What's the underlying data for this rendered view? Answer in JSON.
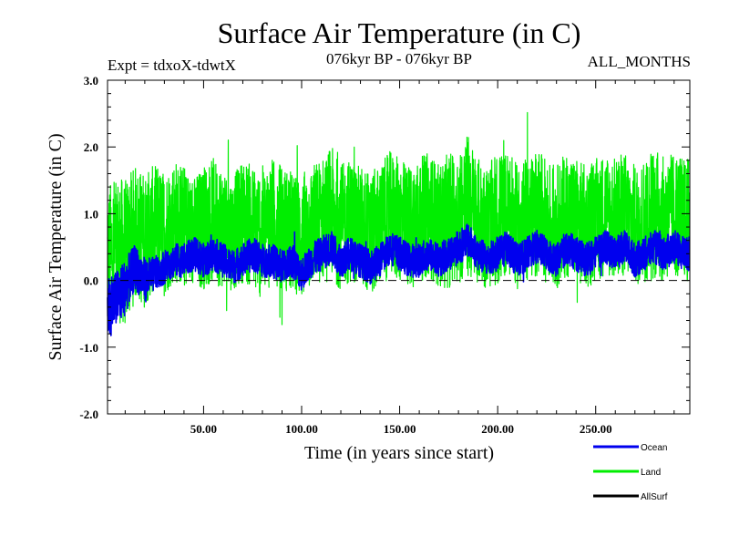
{
  "header": {
    "title": "Surface Air Temperature (in C)",
    "expt": "Expt = tdxoX-tdwtX",
    "period": "076kyr BP - 076kyr BP",
    "months": "ALL_MONTHS"
  },
  "chart_data": {
    "type": "line",
    "title": "Surface Air Temperature (in C)",
    "xlabel": "Time (in years since start)",
    "ylabel": "Surface Air Temperature (in C)",
    "xlim": [
      1,
      298
    ],
    "ylim": [
      -2.0,
      3.0
    ],
    "x_ticks": [
      50,
      100,
      150,
      200,
      250
    ],
    "x_tick_labels": [
      "50.00",
      "100.00",
      "150.00",
      "200.00",
      "250.00"
    ],
    "y_ticks": [
      -2.0,
      -1.0,
      0.0,
      1.0,
      2.0,
      3.0
    ],
    "y_tick_labels": [
      "-2.0",
      "-1.0",
      "0.0",
      "1.0",
      "2.0",
      "3.0"
    ],
    "zero_line": true,
    "legend_position": "bottom-right",
    "series": [
      {
        "name": "Land",
        "color": "#00ee00",
        "draw_order": 1,
        "x": [
          1,
          5,
          10,
          15,
          20,
          25,
          30,
          35,
          40,
          45,
          50,
          55,
          60,
          65,
          70,
          75,
          80,
          85,
          90,
          95,
          100,
          105,
          110,
          115,
          120,
          125,
          130,
          135,
          140,
          145,
          150,
          155,
          160,
          165,
          170,
          175,
          180,
          185,
          190,
          195,
          200,
          205,
          210,
          215,
          220,
          225,
          230,
          235,
          240,
          245,
          250,
          255,
          260,
          265,
          270,
          275,
          280,
          285,
          290,
          295,
          298
        ],
        "values": [
          0.3,
          0.5,
          0.4,
          0.7,
          0.6,
          0.8,
          0.7,
          0.9,
          0.8,
          0.7,
          0.8,
          0.9,
          0.8,
          0.7,
          0.9,
          0.8,
          0.7,
          0.9,
          0.8,
          0.7,
          0.6,
          0.8,
          0.9,
          1.0,
          0.8,
          0.9,
          0.8,
          0.7,
          0.8,
          1.0,
          0.9,
          0.8,
          0.9,
          1.0,
          0.8,
          0.9,
          1.0,
          1.1,
          0.9,
          0.8,
          0.9,
          1.0,
          0.8,
          0.9,
          1.0,
          0.9,
          0.8,
          1.0,
          0.9,
          0.8,
          0.9,
          1.0,
          0.9,
          1.0,
          0.8,
          0.9,
          1.0,
          0.9,
          1.0,
          0.9,
          0.9
        ],
        "band": [
          1.3,
          1.3,
          1.3,
          1.2,
          1.2,
          1.1,
          1.1,
          1.1,
          1.1,
          1.0,
          1.1,
          1.1,
          1.1,
          1.0,
          1.1,
          1.1,
          1.2,
          1.1,
          1.1,
          1.1,
          1.1,
          1.1,
          1.1,
          1.2,
          1.1,
          1.1,
          1.1,
          1.1,
          1.1,
          1.1,
          1.1,
          1.1,
          1.1,
          1.1,
          1.1,
          1.2,
          1.2,
          1.3,
          1.1,
          1.1,
          1.2,
          1.1,
          1.1,
          1.1,
          1.1,
          1.1,
          1.1,
          1.1,
          1.1,
          1.1,
          1.1,
          1.1,
          1.1,
          1.1,
          1.1,
          1.1,
          1.2,
          1.1,
          1.1,
          1.1,
          1.1
        ]
      },
      {
        "name": "Ocean",
        "color": "#0000ee",
        "draw_order": 2,
        "x": [
          1,
          5,
          10,
          15,
          20,
          25,
          30,
          35,
          40,
          45,
          50,
          55,
          60,
          65,
          70,
          75,
          80,
          85,
          90,
          95,
          100,
          105,
          110,
          115,
          120,
          125,
          130,
          135,
          140,
          145,
          150,
          155,
          160,
          165,
          170,
          175,
          180,
          185,
          190,
          195,
          200,
          205,
          210,
          215,
          220,
          225,
          230,
          235,
          240,
          245,
          250,
          255,
          260,
          265,
          270,
          275,
          280,
          285,
          290,
          295,
          298
        ],
        "values": [
          -0.4,
          -0.3,
          -0.1,
          0.2,
          0.0,
          0.1,
          0.2,
          0.3,
          0.3,
          0.4,
          0.3,
          0.4,
          0.3,
          0.2,
          0.3,
          0.4,
          0.3,
          0.3,
          0.2,
          0.3,
          0.1,
          0.3,
          0.4,
          0.5,
          0.3,
          0.4,
          0.3,
          0.2,
          0.3,
          0.5,
          0.4,
          0.3,
          0.3,
          0.4,
          0.3,
          0.4,
          0.5,
          0.6,
          0.4,
          0.3,
          0.4,
          0.5,
          0.3,
          0.4,
          0.5,
          0.4,
          0.3,
          0.5,
          0.4,
          0.3,
          0.4,
          0.5,
          0.4,
          0.5,
          0.3,
          0.4,
          0.5,
          0.4,
          0.5,
          0.4,
          0.4
        ],
        "band": [
          0.6,
          0.5,
          0.5,
          0.4,
          0.4,
          0.3,
          0.3,
          0.3,
          0.3,
          0.3,
          0.3,
          0.3,
          0.3,
          0.3,
          0.3,
          0.3,
          0.3,
          0.3,
          0.3,
          0.3,
          0.3,
          0.3,
          0.3,
          0.3,
          0.3,
          0.3,
          0.3,
          0.3,
          0.3,
          0.3,
          0.3,
          0.3,
          0.3,
          0.3,
          0.3,
          0.3,
          0.3,
          0.3,
          0.3,
          0.3,
          0.3,
          0.3,
          0.3,
          0.3,
          0.3,
          0.3,
          0.3,
          0.3,
          0.3,
          0.3,
          0.3,
          0.3,
          0.3,
          0.3,
          0.3,
          0.3,
          0.3,
          0.3,
          0.3,
          0.3,
          0.3
        ]
      },
      {
        "name": "AllSurf",
        "color": "#000000",
        "draw_order": 0,
        "x": [],
        "values": []
      }
    ],
    "legend": [
      {
        "name": "Ocean",
        "color": "#0000ee"
      },
      {
        "name": "Land",
        "color": "#00ee00"
      },
      {
        "name": "AllSurf",
        "color": "#000000"
      }
    ]
  }
}
